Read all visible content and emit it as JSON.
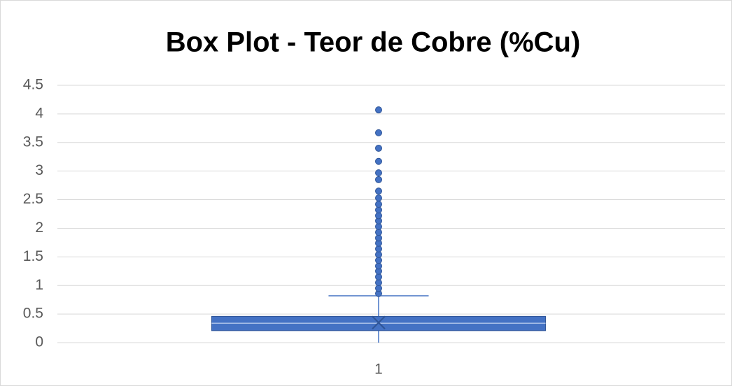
{
  "chart_data": {
    "type": "box",
    "title": "Box Plot - Teor de Cobre (%Cu)",
    "categories": [
      "1"
    ],
    "ylim": [
      0,
      4.5
    ],
    "yticks": [
      0,
      0.5,
      1,
      1.5,
      2,
      2.5,
      3,
      3.5,
      4,
      4.5
    ],
    "grid": true,
    "color": "#4472c4",
    "boxes": [
      {
        "whisker_low": 0,
        "q1": 0.21,
        "median": 0.34,
        "q3": 0.46,
        "whisker_high": 0.82,
        "mean": 0.35,
        "outliers": [
          0.86,
          0.95,
          1.05,
          1.15,
          1.25,
          1.34,
          1.44,
          1.54,
          1.64,
          1.74,
          1.83,
          1.93,
          2.03,
          2.13,
          2.22,
          2.32,
          2.42,
          2.53,
          2.65,
          2.85,
          2.97,
          3.17,
          3.4,
          3.67,
          4.07
        ]
      }
    ]
  }
}
